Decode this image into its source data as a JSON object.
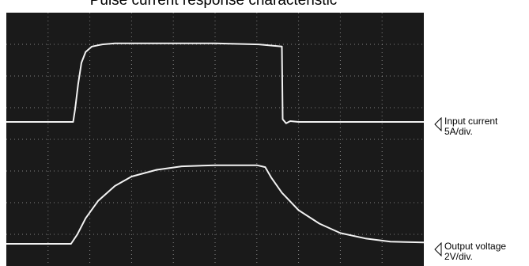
{
  "chart_data": {
    "type": "line",
    "title": "Pulse current response characteristic",
    "grid": true,
    "background": "#1a1a1a",
    "trace_color": "#f2f2f2",
    "grid_color": "#d8d8d8",
    "x_divisions": 10,
    "y_divisions": 8,
    "series": [
      {
        "name": "Input current",
        "scale": "5A/div.",
        "x": [
          0,
          1.6,
          1.65,
          1.72,
          1.8,
          1.9,
          2.05,
          2.3,
          2.6,
          3.0,
          4.0,
          5.0,
          6.05,
          6.6,
          6.62,
          6.7,
          6.8,
          7.0,
          8.0,
          10.0
        ],
        "y": [
          0.0,
          0.0,
          0.5,
          1.4,
          2.2,
          2.6,
          2.8,
          2.88,
          2.92,
          2.92,
          2.92,
          2.92,
          2.88,
          2.8,
          0.1,
          -0.05,
          0.03,
          0.0,
          0.0,
          0.0
        ]
      },
      {
        "name": "Output voltage",
        "scale": "2V/div.",
        "x": [
          0,
          1.55,
          1.7,
          1.9,
          2.2,
          2.6,
          3.0,
          3.6,
          4.2,
          5.0,
          6.0,
          6.2,
          6.35,
          6.6,
          7.0,
          7.5,
          8.0,
          8.6,
          9.2,
          10.0
        ],
        "y": [
          0.0,
          0.0,
          0.35,
          0.95,
          1.6,
          2.15,
          2.5,
          2.75,
          2.88,
          2.92,
          2.92,
          2.85,
          2.45,
          1.9,
          1.25,
          0.75,
          0.4,
          0.2,
          0.08,
          0.05
        ]
      }
    ]
  },
  "labels": {
    "input_name": "Input current",
    "input_scale": "5A/div.",
    "output_name": "Output voltage",
    "output_scale": "2V/div."
  }
}
